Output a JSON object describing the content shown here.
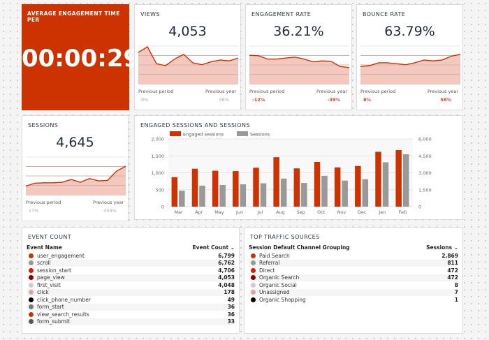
{
  "colors": {
    "accent": "#cc3300",
    "sessions_bar": "#999999",
    "spark_fill": "#f2c2b8"
  },
  "avg_engagement": {
    "title": "AVERAGE ENGAGEMENT TIME PER",
    "value": "00:00:29"
  },
  "kpis": [
    {
      "title": "VIEWS",
      "value": "4,053",
      "prev_period_label": "Previous period",
      "prev_year_label": "Previous year",
      "prev_period": "9%",
      "prev_year": "36%",
      "trend_style": "neutral",
      "spark": [
        3.4,
        4.0,
        2.2,
        2.0,
        2.7,
        3.2,
        2.3,
        2.1,
        2.4,
        2.6,
        2.5,
        2.8
      ]
    },
    {
      "title": "ENGAGEMENT RATE",
      "value": "36.21%",
      "prev_period_label": "Previous period",
      "prev_year_label": "Previous year",
      "prev_period": "-12%",
      "prev_year": "-39%",
      "trend_style": "negative",
      "spark": [
        3.1,
        3.05,
        2.7,
        2.7,
        2.8,
        2.9,
        2.7,
        2.4,
        2.5,
        2.45,
        1.9,
        1.8
      ]
    },
    {
      "title": "BOUNCE RATE",
      "value": "63.79%",
      "prev_period_label": "Previous period",
      "prev_year_label": "Previous year",
      "prev_period": "8%",
      "prev_year": "58%",
      "trend_style": "negative",
      "spark": [
        1.9,
        2.0,
        2.3,
        2.3,
        2.2,
        2.1,
        2.3,
        2.6,
        2.5,
        2.6,
        3.0,
        3.2
      ]
    },
    {
      "title": "SESSIONS",
      "value": "4,645",
      "prev_period_label": "Previous period",
      "prev_year_label": "Previous year",
      "prev_period": "17%",
      "prev_year": "459%",
      "trend_style": "neutral",
      "spark": [
        1.0,
        1.3,
        1.35,
        1.35,
        1.4,
        1.7,
        1.4,
        1.8,
        1.55,
        1.6,
        2.6,
        3.1
      ]
    }
  ],
  "chart_data": {
    "type": "bar",
    "title": "ENGAGED SESSIONS AND SESSIONS",
    "categories": [
      "Mar",
      "Apr",
      "May",
      "Jun",
      "Jul",
      "Aug",
      "Sep",
      "Oct",
      "Nov",
      "Dec",
      "Jan",
      "Feb"
    ],
    "series": [
      {
        "name": "Engaged sessions",
        "axis": "left",
        "color": "#cc3300",
        "values": [
          870,
          1120,
          1060,
          1050,
          1150,
          1460,
          1130,
          1320,
          1160,
          1200,
          1620,
          1670
        ]
      },
      {
        "name": "Sessions",
        "axis": "right",
        "color": "#999999",
        "values": [
          1410,
          1860,
          1920,
          1980,
          2070,
          2490,
          2100,
          2730,
          2310,
          2430,
          3930,
          4645
        ]
      }
    ],
    "ylim_left": [
      0,
      2000
    ],
    "yticks_left": [
      "0",
      "500",
      "1,000",
      "1,500",
      "2,000"
    ],
    "ylim_right": [
      0,
      6000
    ],
    "yticks_right": [
      "0",
      "1,500",
      "3,000",
      "4,500",
      "6,000"
    ],
    "grid": true,
    "legend": "top-left"
  },
  "event_count": {
    "title": "EVENT COUNT",
    "col1": "Event Name",
    "col2": "Event Count",
    "sort_icon": "chevron-down-icon",
    "rows": [
      {
        "name": "user_engagement",
        "value": "6,799",
        "color": "#cc3300"
      },
      {
        "name": "scroll",
        "value": "6,762",
        "color": "#999999"
      },
      {
        "name": "session_start",
        "value": "4,706",
        "color": "#e8100c"
      },
      {
        "name": "page_view",
        "value": "4,053",
        "color": "#8b0000"
      },
      {
        "name": "first_visit",
        "value": "4,048",
        "color": "#cccccc"
      },
      {
        "name": "click",
        "value": "178",
        "color": "#e8a0a0"
      },
      {
        "name": "click_phone_number",
        "value": "49",
        "color": "#000000"
      },
      {
        "name": "form_start",
        "value": "36",
        "color": "#777777"
      },
      {
        "name": "view_search_results",
        "value": "36",
        "color": "#cc3300"
      },
      {
        "name": "form_submit",
        "value": "33",
        "color": "#555555"
      }
    ]
  },
  "traffic": {
    "title": "TOP TRAFFIC SOURCES",
    "col1": "Session Default Channel Grouping",
    "col2": "Sessions",
    "sort_icon": "chevron-down-icon",
    "rows": [
      {
        "name": "Paid Search",
        "value": "2,869",
        "color": "#cc3300"
      },
      {
        "name": "Referral",
        "value": "811",
        "color": "#999999"
      },
      {
        "name": "Direct",
        "value": "472",
        "color": "#e8100c"
      },
      {
        "name": "Organic Search",
        "value": "472",
        "color": "#8b0000"
      },
      {
        "name": "Organic Social",
        "value": "8",
        "color": "#cccccc"
      },
      {
        "name": "Unassigned",
        "value": "7",
        "color": "#e8a0a0"
      },
      {
        "name": "Organic Shopping",
        "value": "1",
        "color": "#000000"
      }
    ]
  }
}
